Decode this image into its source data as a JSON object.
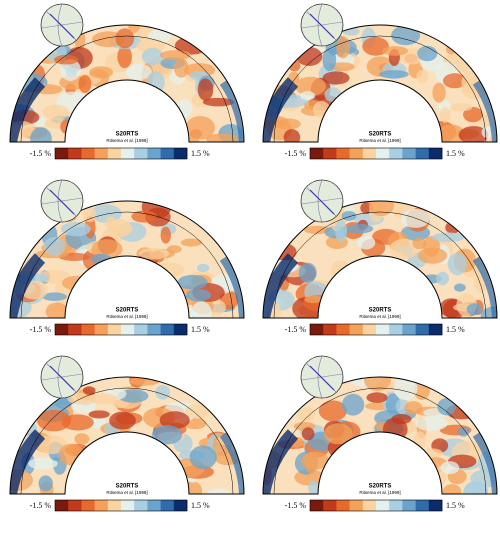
{
  "panels": [
    {
      "title": "S20RTS",
      "citation": "Ritsema et al. [1999]",
      "scale_min": "-1.5 %",
      "scale_max": "1.5 %"
    },
    {
      "title": "S20RTS",
      "citation": "Ritsema et al. [1999]",
      "scale_min": "-1.5 %",
      "scale_max": "1.5 %"
    },
    {
      "title": "S20RTS",
      "citation": "Ritsema et al. [1999]",
      "scale_min": "-1.5 %",
      "scale_max": "1.5 %"
    },
    {
      "title": "S20RTS",
      "citation": "Ritsema et al. [1999]",
      "scale_min": "-1.5 %",
      "scale_max": "1.5 %"
    },
    {
      "title": "S20RTS",
      "citation": "Ritsema et al. [1999]",
      "scale_min": "-1.5 %",
      "scale_max": "1.5 %"
    },
    {
      "title": "S20RTS",
      "citation": "Ritsema et al. [1999]",
      "scale_min": "-1.5 %",
      "scale_max": "1.5 %"
    }
  ]
}
